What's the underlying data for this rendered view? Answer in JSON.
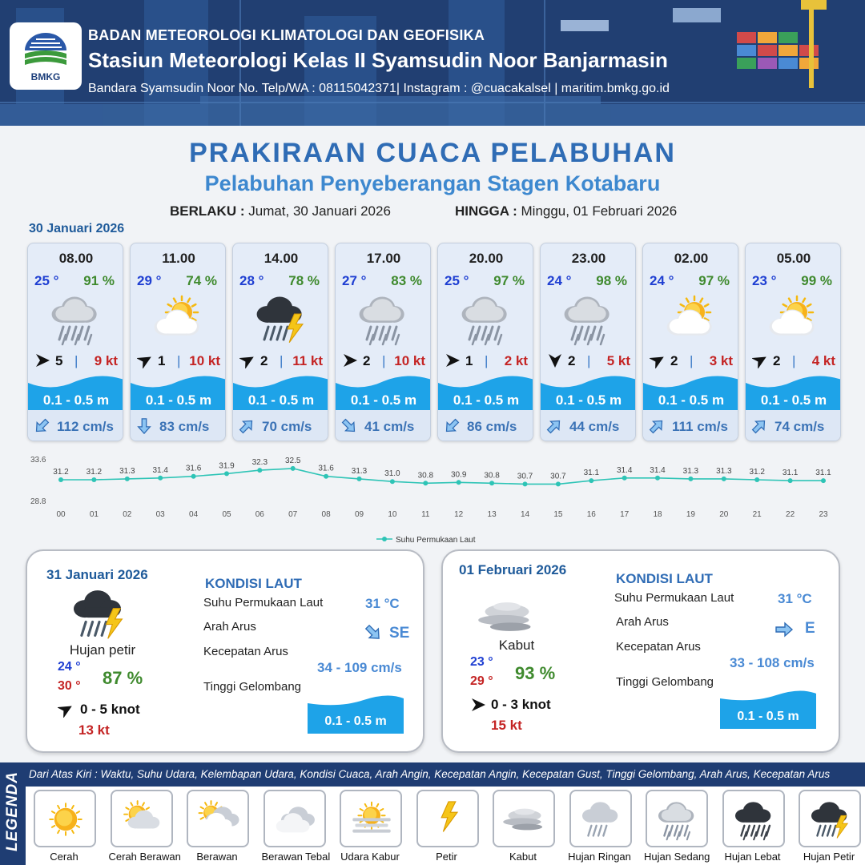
{
  "header": {
    "agency": "BADAN METEOROLOGI KLIMATOLOGI DAN GEOFISIKA",
    "station": "Stasiun Meteorologi Kelas II Syamsudin Noor Banjarmasin",
    "contact": "Bandara Syamsudin Noor No. Telp/WA : 08115042371| Instagram : @cuacakalsel | maritim.bmkg.go.id",
    "logo_text": "BMKG"
  },
  "title": "PRAKIRAAN CUACA PELABUHAN",
  "subtitle": "Pelabuhan Penyeberangan Stagen Kotabaru",
  "validity": {
    "from_label": "BERLAKU :",
    "from_value": "Jumat, 30 Januari 2026",
    "to_label": "HINGGA :",
    "to_value": "Minggu, 01 Februari 2026"
  },
  "forecast_date": "30 Januari 2026",
  "forecasts": [
    {
      "time": "08.00",
      "temp": "25 °",
      "humidity": "91 %",
      "icon": "moderate-rain-icon",
      "wind_dir_deg": 90,
      "wind": "5",
      "gust": "9 kt",
      "wave": "0.1 - 0.5 m",
      "current_dir_deg": 225,
      "current": "112 cm/s"
    },
    {
      "time": "11.00",
      "temp": "29 °",
      "humidity": "74 %",
      "icon": "partly-cloudy-icon",
      "wind_dir_deg": 60,
      "wind": "1",
      "gust": "10 kt",
      "wave": "0.1 - 0.5 m",
      "current_dir_deg": 180,
      "current": "83 cm/s"
    },
    {
      "time": "14.00",
      "temp": "28 °",
      "humidity": "78 %",
      "icon": "thunderstorm-icon",
      "wind_dir_deg": 60,
      "wind": "2",
      "gust": "11 kt",
      "wave": "0.1 - 0.5 m",
      "current_dir_deg": 45,
      "current": "70 cm/s"
    },
    {
      "time": "17.00",
      "temp": "27 °",
      "humidity": "83 %",
      "icon": "moderate-rain-icon",
      "wind_dir_deg": 90,
      "wind": "2",
      "gust": "10 kt",
      "wave": "0.1 - 0.5 m",
      "current_dir_deg": 135,
      "current": "41 cm/s"
    },
    {
      "time": "20.00",
      "temp": "25 °",
      "humidity": "97 %",
      "icon": "moderate-rain-icon",
      "wind_dir_deg": 90,
      "wind": "1",
      "gust": "2 kt",
      "wave": "0.1 - 0.5 m",
      "current_dir_deg": 225,
      "current": "86 cm/s"
    },
    {
      "time": "23.00",
      "temp": "24 °",
      "humidity": "98 %",
      "icon": "moderate-rain-icon",
      "wind_dir_deg": 180,
      "wind": "2",
      "gust": "5 kt",
      "wave": "0.1 - 0.5 m",
      "current_dir_deg": 45,
      "current": "44 cm/s"
    },
    {
      "time": "02.00",
      "temp": "24 °",
      "humidity": "97 %",
      "icon": "partly-cloudy-icon",
      "wind_dir_deg": 60,
      "wind": "2",
      "gust": "3 kt",
      "wave": "0.1 - 0.5 m",
      "current_dir_deg": 45,
      "current": "111 cm/s"
    },
    {
      "time": "05.00",
      "temp": "23 °",
      "humidity": "99 %",
      "icon": "partly-cloudy-icon",
      "wind_dir_deg": 60,
      "wind": "2",
      "gust": "4 kt",
      "wave": "0.1 - 0.5 m",
      "current_dir_deg": 45,
      "current": "74 cm/s"
    }
  ],
  "chart_data": {
    "type": "line",
    "x": [
      "00",
      "01",
      "02",
      "03",
      "04",
      "05",
      "06",
      "07",
      "08",
      "09",
      "10",
      "11",
      "12",
      "13",
      "14",
      "15",
      "16",
      "17",
      "18",
      "19",
      "20",
      "21",
      "22",
      "23"
    ],
    "series": [
      {
        "name": "Suhu Permukaan Laut",
        "values": [
          31.2,
          31.2,
          31.3,
          31.4,
          31.6,
          31.9,
          32.3,
          32.5,
          31.6,
          31.3,
          31.0,
          30.8,
          30.9,
          30.8,
          30.7,
          30.7,
          31.1,
          31.4,
          31.4,
          31.3,
          31.3,
          31.2,
          31.1,
          31.1
        ],
        "color": "#2ec4b6"
      }
    ],
    "ylim": [
      28.8,
      33.6
    ],
    "y_ticks": [
      "33.6",
      "28.8"
    ],
    "legend": "bottom-center"
  },
  "daily": [
    {
      "date": "31 Januari 2026",
      "icon": "thunderstorm-icon",
      "condition": "Hujan petir",
      "temp_min": "24 °",
      "temp_max": "30 °",
      "humidity": "87 %",
      "wind_dir_deg": 60,
      "wind": "0  - 5 knot",
      "gust": "13 kt",
      "kondisi_title": "KONDISI LAUT",
      "sst_label": "Suhu Permukaan Laut",
      "sst": "31 °C",
      "current_dir_label": "Arah Arus",
      "current_dir_deg": 135,
      "current_dir": "SE",
      "current_speed_label": "Kecepatan Arus",
      "current_speed": "34 - 109 cm/s",
      "wave_label": "Tinggi Gelombang",
      "wave": "0.1 - 0.5 m"
    },
    {
      "date": "01 Februari 2026",
      "icon": "fog-icon",
      "condition": "Kabut",
      "temp_min": "23 °",
      "temp_max": "29 °",
      "humidity": "93 %",
      "wind_dir_deg": 90,
      "wind": "0  - 3 knot",
      "gust": "15 kt",
      "kondisi_title": "KONDISI LAUT",
      "sst_label": "Suhu Permukaan Laut",
      "sst": "31 °C",
      "current_dir_label": "Arah Arus",
      "current_dir_deg": 90,
      "current_dir": "E",
      "current_speed_label": "Kecepatan Arus",
      "current_speed": "33 - 108 cm/s",
      "wave_label": "Tinggi Gelombang",
      "wave": "0.1 - 0.5 m"
    }
  ],
  "legend": {
    "title": "LEGENDA",
    "description": "Dari Atas Kiri : Waktu, Suhu Udara, Kelembapan Udara, Kondisi Cuaca, Arah Angin, Kecepatan Angin, Kecepatan Gust, Tinggi Gelombang, Arah Arus, Kecepatan Arus",
    "items": [
      {
        "name": "Cerah",
        "icon": "sunny-icon"
      },
      {
        "name": "Cerah Berawan",
        "icon": "mostly-sunny-icon"
      },
      {
        "name": "Berawan",
        "icon": "cloudy-icon"
      },
      {
        "name": "Berawan Tebal",
        "icon": "overcast-icon"
      },
      {
        "name": "Udara Kabur",
        "icon": "haze-icon"
      },
      {
        "name": "Petir",
        "icon": "lightning-icon"
      },
      {
        "name": "Kabut",
        "icon": "fog-icon"
      },
      {
        "name": "Hujan Ringan",
        "icon": "light-rain-icon"
      },
      {
        "name": "Hujan Sedang",
        "icon": "moderate-rain-icon"
      },
      {
        "name": "Hujan Lebat",
        "icon": "heavy-rain-icon"
      },
      {
        "name": "Hujan Petir",
        "icon": "thunderstorm-icon"
      }
    ]
  }
}
